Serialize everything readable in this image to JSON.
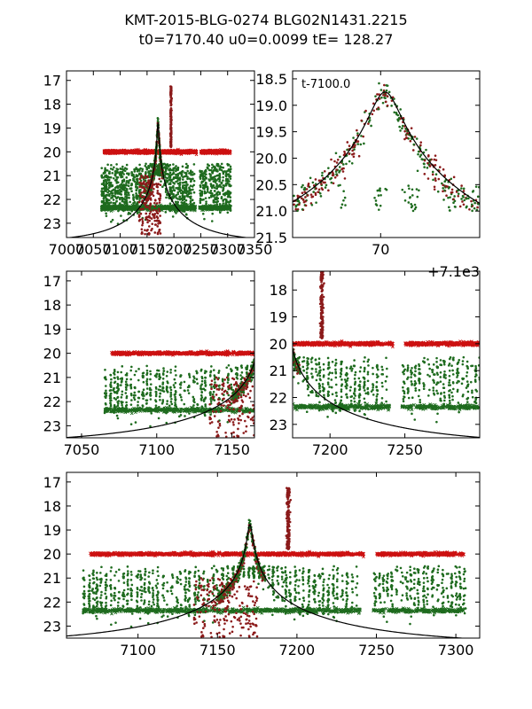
{
  "header": {
    "title_line1": "KMT-2015-BLG-0274 BLG02N1431.2215",
    "title_line2": "t0=7170.40 u0=0.0099 tE= 128.27"
  },
  "colors": {
    "red_points": "#cc1111",
    "darkred_points": "#8b1a1a",
    "green_points": "#1e6b1e",
    "model_curve": "#000000"
  },
  "model": {
    "t0": 7170.4,
    "u0": 0.0099,
    "tE": 128.27,
    "mag_base": 23.8,
    "mag_peak": 18.75
  },
  "chart_data": [
    {
      "id": "overview",
      "type": "scatter",
      "xlim": [
        7000,
        7350
      ],
      "ylim": [
        23.6,
        16.6
      ],
      "xticks": [
        7000,
        7050,
        7100,
        7150,
        7200,
        7250,
        7300,
        7350
      ],
      "xtick_labels": [
        "7000",
        "7050",
        "7100",
        "7150",
        "7200",
        "7250",
        "7300",
        "7350"
      ],
      "yticks": [
        17,
        18,
        19,
        20,
        21,
        22,
        23
      ],
      "ytick_labels": [
        "17",
        "18",
        "19",
        "20",
        "21",
        "22",
        "23"
      ],
      "series": [
        {
          "marker": "x",
          "mag": 20.0,
          "x_range": [
            7070,
            7300
          ]
        },
        {
          "marker": "x",
          "mag": 22.35,
          "x_range": [
            7065,
            7300
          ]
        },
        {
          "marker": "dot",
          "mag_range": [
            20.6,
            23.5
          ],
          "x_range": [
            7065,
            7300
          ]
        },
        {
          "marker": "dot",
          "peak_x": 7195,
          "mag_range": [
            17.1,
            20.0
          ]
        }
      ]
    },
    {
      "id": "peak-zoom",
      "type": "scatter",
      "annotation": "t-7100.0",
      "offset_text": "+7.1e3",
      "xlim": [
        7162,
        7179
      ],
      "ylim": [
        21.5,
        18.35
      ],
      "xticks": [
        7170
      ],
      "xtick_labels": [
        "70"
      ],
      "yticks": [
        18.5,
        19.0,
        19.5,
        20.0,
        20.5,
        21.0,
        21.5
      ],
      "ytick_labels": [
        "18.5",
        "19.0",
        "19.5",
        "20.0",
        "20.5",
        "21.0",
        "21.5"
      ]
    },
    {
      "id": "early",
      "type": "scatter",
      "xlim": [
        7040,
        7165
      ],
      "ylim": [
        23.5,
        16.6
      ],
      "xticks": [
        7050,
        7100,
        7150
      ],
      "xtick_labels": [
        "7050",
        "7100",
        "7150"
      ],
      "yticks": [
        17,
        18,
        19,
        20,
        21,
        22,
        23
      ],
      "ytick_labels": [
        "17",
        "18",
        "19",
        "20",
        "21",
        "22",
        "23"
      ]
    },
    {
      "id": "late",
      "type": "scatter",
      "xlim": [
        7175,
        7300
      ],
      "ylim": [
        23.5,
        17.3
      ],
      "xticks": [
        7200,
        7250
      ],
      "xtick_labels": [
        "7200",
        "7250"
      ],
      "yticks": [
        18,
        19,
        20,
        21,
        22,
        23
      ],
      "ytick_labels": [
        "18",
        "19",
        "20",
        "21",
        "22",
        "23"
      ]
    },
    {
      "id": "full",
      "type": "scatter",
      "xlim": [
        7055,
        7315
      ],
      "ylim": [
        23.5,
        16.6
      ],
      "xticks": [
        7100,
        7150,
        7200,
        7250,
        7300
      ],
      "xtick_labels": [
        "7100",
        "7150",
        "7200",
        "7250",
        "7300"
      ],
      "yticks": [
        17,
        18,
        19,
        20,
        21,
        22,
        23
      ],
      "ytick_labels": [
        "17",
        "18",
        "19",
        "20",
        "21",
        "22",
        "23"
      ]
    }
  ]
}
